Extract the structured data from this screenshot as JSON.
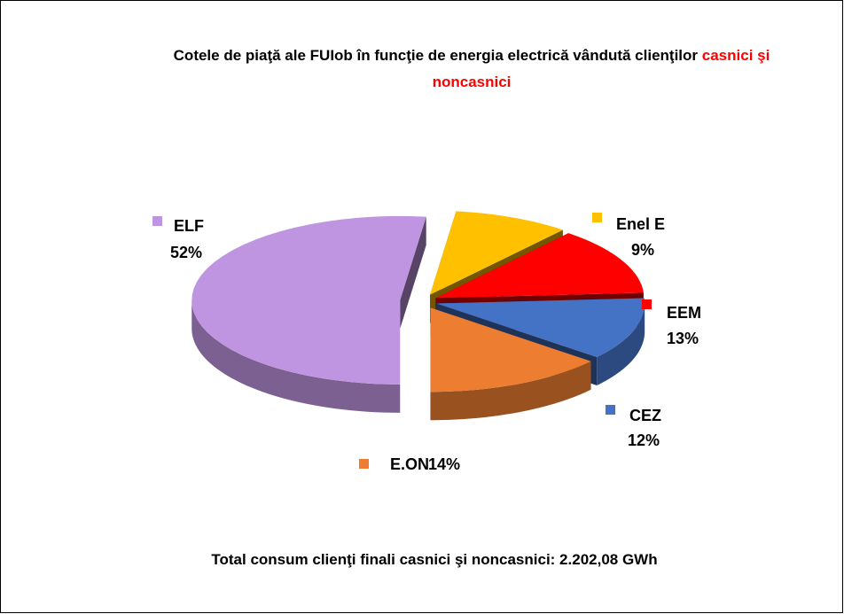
{
  "chart_data": {
    "type": "pie3d",
    "title": "Cotele de piaţă ale FUIob în funcţie de energia electrică vândută clienţilor",
    "title_highlight": "casnici şi noncasnici",
    "categories": [
      "ELF",
      "Enel E",
      "EEM",
      "CEZ",
      "E.ON"
    ],
    "values": [
      52,
      9,
      13,
      12,
      14
    ],
    "value_labels": [
      "52%",
      "9%",
      "13%",
      "12%",
      "14%"
    ],
    "colors": [
      "#bf94e0",
      "#ffc000",
      "#ff0000",
      "#4472c4",
      "#ed7d31"
    ],
    "annotation": "Total consum clienţi finali casnici şi noncasnici: 2.202,08 GWh"
  }
}
